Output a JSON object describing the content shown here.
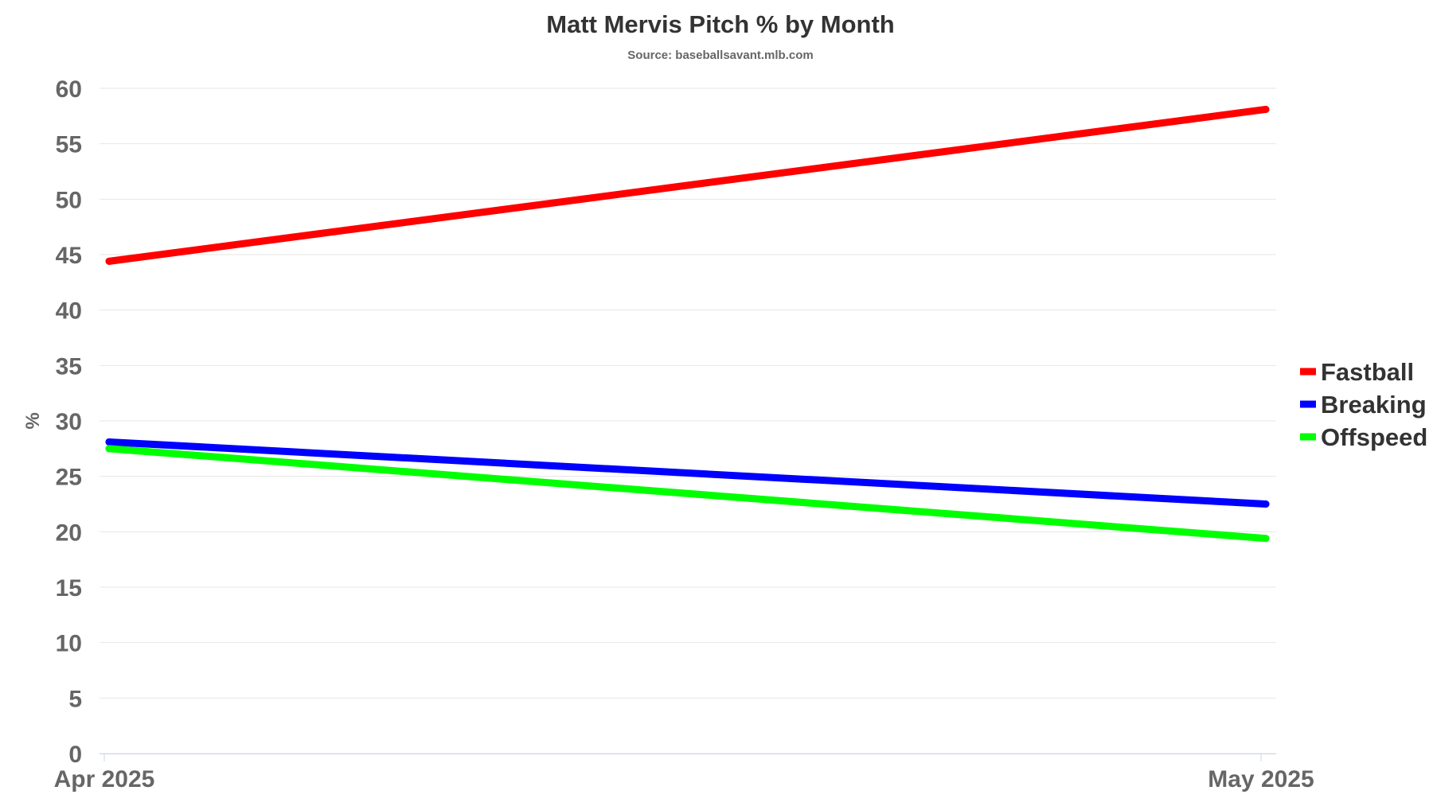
{
  "chart_data": {
    "type": "line",
    "title": "Matt Mervis Pitch % by Month",
    "subtitle": "Source: baseballsavant.mlb.com",
    "xlabel": "",
    "ylabel": "%",
    "categories": [
      "Apr 2025",
      "May 2025"
    ],
    "ylim": [
      0,
      60
    ],
    "yticks": [
      0,
      5,
      10,
      15,
      20,
      25,
      30,
      35,
      40,
      45,
      50,
      55,
      60
    ],
    "grid": true,
    "legend_position": "right",
    "series": [
      {
        "name": "Fastball",
        "color": "#ff0000",
        "values": [
          44.4,
          58.1
        ]
      },
      {
        "name": "Breaking",
        "color": "#0000ff",
        "values": [
          28.1,
          22.5
        ]
      },
      {
        "name": "Offspeed",
        "color": "#00ff00",
        "values": [
          27.5,
          19.4
        ]
      }
    ]
  }
}
